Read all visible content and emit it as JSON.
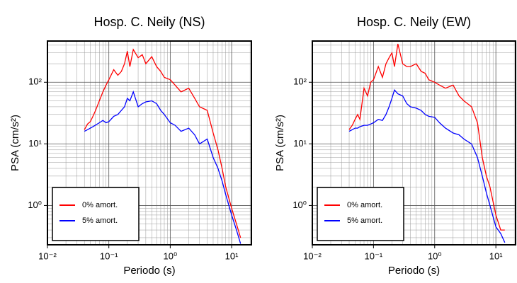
{
  "chart_data": [
    {
      "type": "line",
      "title": "Hosp. C. Neily (NS)",
      "x_label": "Periodo (s)",
      "y_label": "PSA (cm/s²)",
      "x_scale": "log",
      "y_scale": "log",
      "grid": true,
      "legend": "lower left",
      "xlim": [
        0.01,
        21
      ],
      "ylim": [
        0.23,
        467
      ],
      "xticks": [
        {
          "value": 0.01,
          "label": "10⁻²"
        },
        {
          "value": 0.1,
          "label": "10⁻¹"
        },
        {
          "value": 1,
          "label": "10⁰"
        },
        {
          "value": 10,
          "label": "10¹"
        }
      ],
      "yticks": [
        {
          "value": 1,
          "label": "10⁰"
        },
        {
          "value": 10,
          "label": "10¹"
        },
        {
          "value": 100,
          "label": "10²"
        }
      ],
      "x": [
        0.04,
        0.045,
        0.05,
        0.055,
        0.06,
        0.07,
        0.08,
        0.09,
        0.1,
        0.12,
        0.14,
        0.16,
        0.18,
        0.2,
        0.22,
        0.25,
        0.3,
        0.35,
        0.4,
        0.5,
        0.6,
        0.7,
        0.8,
        1,
        1.2,
        1.5,
        2,
        2.5,
        3,
        4,
        5,
        6,
        7,
        8,
        10,
        12,
        14
      ],
      "series": [
        {
          "name": "0% amort.",
          "color": "#ff0000",
          "values": [
            17,
            21,
            23,
            28,
            34,
            50,
            70,
            90,
            110,
            160,
            130,
            150,
            200,
            320,
            180,
            340,
            250,
            280,
            200,
            260,
            180,
            150,
            120,
            110,
            90,
            70,
            80,
            55,
            40,
            35,
            15,
            8,
            4,
            2,
            0.9,
            0.5,
            0.3
          ]
        },
        {
          "name": "5% amort.",
          "color": "#0000ff",
          "values": [
            16,
            17,
            18,
            19,
            20,
            22,
            24,
            22,
            23,
            28,
            30,
            35,
            40,
            55,
            50,
            70,
            40,
            45,
            48,
            50,
            45,
            35,
            30,
            22,
            20,
            16,
            18,
            14,
            10,
            12,
            6,
            4,
            2.5,
            1.5,
            0.7,
            0.4,
            0.24
          ]
        }
      ]
    },
    {
      "type": "line",
      "title": "Hosp. C. Neily (EW)",
      "x_label": "Periodo (s)",
      "y_label": "PSA (cm/s²)",
      "x_scale": "log",
      "y_scale": "log",
      "grid": true,
      "legend": "lower left",
      "xlim": [
        0.01,
        21
      ],
      "ylim": [
        0.23,
        467
      ],
      "xticks": [
        {
          "value": 0.01,
          "label": "10⁻²"
        },
        {
          "value": 0.1,
          "label": "10⁻¹"
        },
        {
          "value": 1,
          "label": "10⁰"
        },
        {
          "value": 10,
          "label": "10¹"
        }
      ],
      "yticks": [
        {
          "value": 1,
          "label": "10⁰"
        },
        {
          "value": 10,
          "label": "10¹"
        },
        {
          "value": 100,
          "label": "10²"
        }
      ],
      "x": [
        0.04,
        0.045,
        0.05,
        0.055,
        0.06,
        0.07,
        0.08,
        0.09,
        0.1,
        0.12,
        0.14,
        0.16,
        0.18,
        0.2,
        0.22,
        0.25,
        0.3,
        0.35,
        0.4,
        0.5,
        0.6,
        0.7,
        0.8,
        1,
        1.2,
        1.5,
        2,
        2.5,
        3,
        4,
        5,
        6,
        7,
        8,
        10,
        12,
        14
      ],
      "series": [
        {
          "name": "0% amort.",
          "color": "#ff0000",
          "values": [
            17,
            20,
            25,
            30,
            25,
            80,
            60,
            100,
            110,
            180,
            120,
            200,
            250,
            300,
            180,
            420,
            200,
            180,
            180,
            200,
            150,
            140,
            110,
            100,
            90,
            80,
            90,
            60,
            50,
            40,
            22,
            6,
            3,
            2,
            0.7,
            0.4,
            0.4
          ]
        },
        {
          "name": "5% amort.",
          "color": "#0000ff",
          "values": [
            16,
            17,
            18,
            18,
            19,
            20,
            20,
            21,
            22,
            25,
            24,
            30,
            40,
            55,
            75,
            65,
            60,
            45,
            40,
            38,
            35,
            30,
            28,
            27,
            22,
            18,
            15,
            14,
            12,
            10,
            6,
            3,
            1.6,
            1,
            0.45,
            0.35,
            0.25
          ]
        }
      ]
    }
  ]
}
